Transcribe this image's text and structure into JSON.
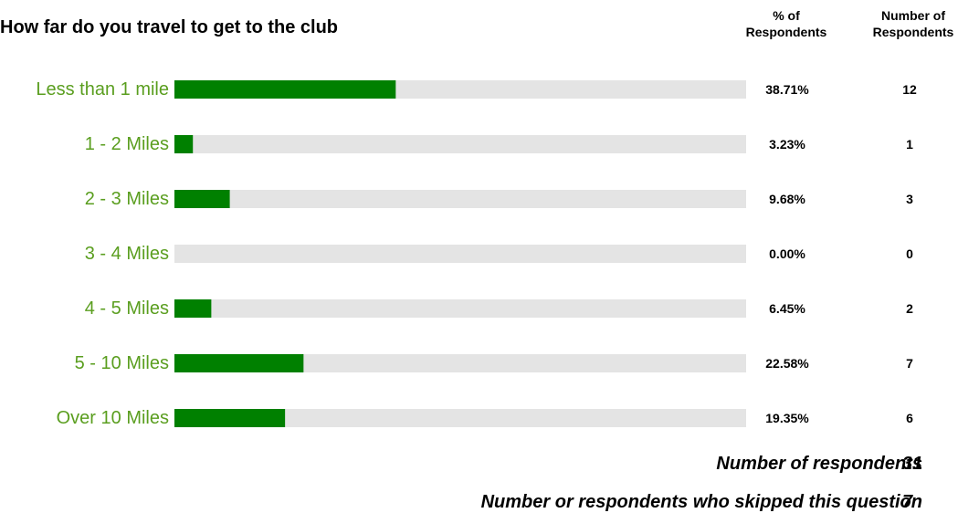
{
  "title": "How far do you travel to get to the club",
  "columns": {
    "percent_header_line1": "% of",
    "percent_header_line2": "Respondents",
    "count_header_line1": "Number of",
    "count_header_line2": "Respondents"
  },
  "colors": {
    "bar": "#008000",
    "track": "#e4e4e4",
    "label": "#5a9e1f"
  },
  "chart_data": {
    "type": "bar",
    "orientation": "horizontal",
    "categories": [
      "Less than 1 mile",
      "1 - 2 Miles",
      "2 - 3 Miles",
      "3 - 4 Miles",
      "4 - 5 Miles",
      "5 - 10 Miles",
      "Over 10 Miles"
    ],
    "values": [
      38.71,
      3.23,
      9.68,
      0.0,
      6.45,
      22.58,
      19.35
    ],
    "percent_labels": [
      "38.71%",
      "3.23%",
      "9.68%",
      "0.00%",
      "6.45%",
      "22.58%",
      "19.35%"
    ],
    "counts": [
      "12",
      "1",
      "3",
      "0",
      "2",
      "7",
      "6"
    ],
    "xlim": [
      0,
      100
    ]
  },
  "summary": {
    "respondents_label": "Number of respondents",
    "respondents_value": "31",
    "skipped_label": "Number or respondents who skipped this question",
    "skipped_value": "7"
  }
}
